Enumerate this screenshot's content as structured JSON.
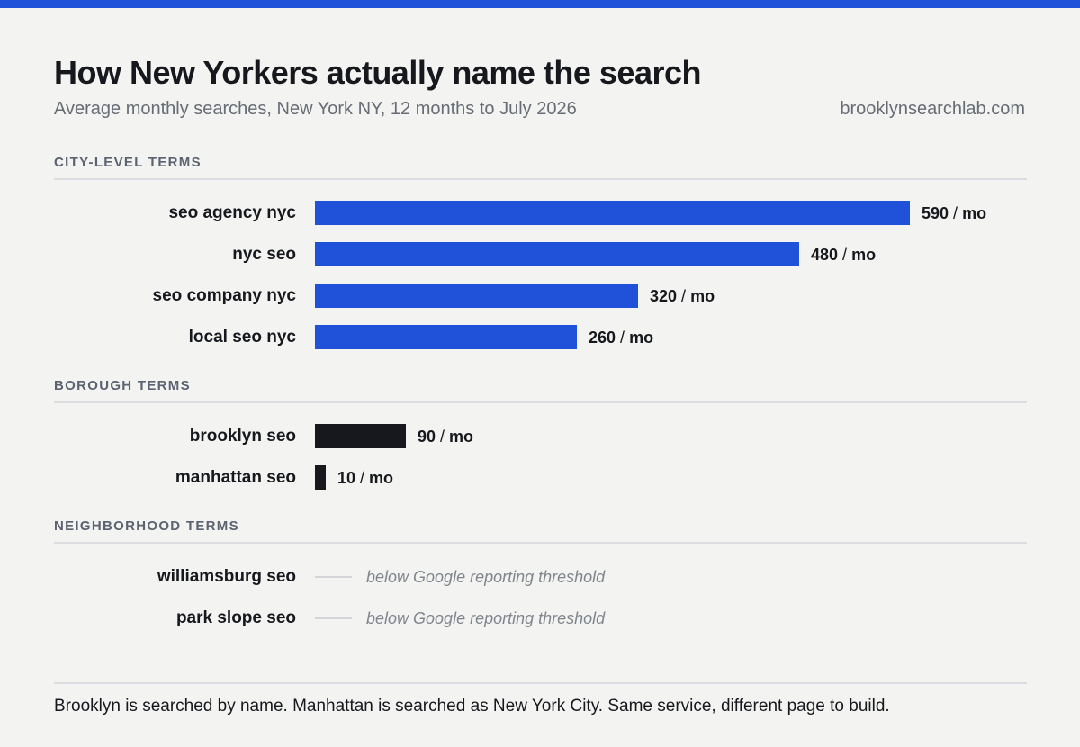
{
  "header": {
    "title": "How New Yorkers actually name the search",
    "subtitle": "Average monthly searches, New York NY, 12 months to July 2026",
    "site": "brooklynsearchlab.com"
  },
  "colors": {
    "accent": "#1f52d8",
    "borough": "#16181d",
    "muted": "#80858e"
  },
  "chart_data": {
    "type": "bar",
    "orientation": "horizontal",
    "xlim": [
      0,
      590
    ],
    "value_unit": "/ mo",
    "groups": [
      {
        "name": "CITY-LEVEL TERMS",
        "color": "#1f52d8",
        "items": [
          {
            "label": "seo agency nyc",
            "value": 590,
            "value_text": "590"
          },
          {
            "label": "nyc seo",
            "value": 480,
            "value_text": "480"
          },
          {
            "label": "seo company nyc",
            "value": 320,
            "value_text": "320"
          },
          {
            "label": "local seo nyc",
            "value": 260,
            "value_text": "260"
          }
        ]
      },
      {
        "name": "BOROUGH TERMS",
        "color": "#16181d",
        "items": [
          {
            "label": "brooklyn seo",
            "value": 90,
            "value_text": "90"
          },
          {
            "label": "manhattan seo",
            "value": 10,
            "value_text": "10"
          }
        ]
      },
      {
        "name": "NEIGHBORHOOD TERMS",
        "color": "#d4d5d9",
        "items": [
          {
            "label": "williamsburg seo",
            "value": null,
            "note": "below Google reporting threshold"
          },
          {
            "label": "park slope seo",
            "value": null,
            "note": "below Google reporting threshold"
          }
        ]
      }
    ]
  },
  "footer": {
    "text": "Brooklyn is searched by name. Manhattan is searched as New York City. Same service, different page to build."
  }
}
